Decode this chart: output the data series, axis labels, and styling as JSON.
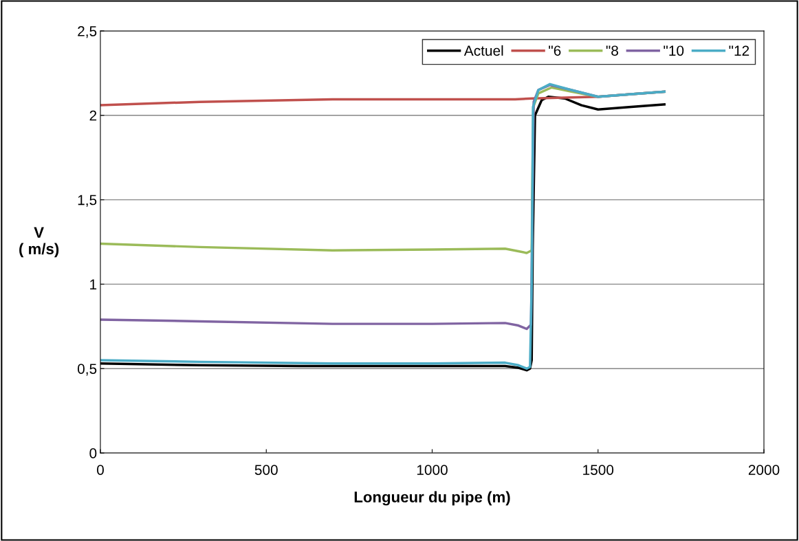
{
  "chart_data": {
    "type": "line",
    "xlabel": "Longueur du pipe (m)",
    "ylabel": "V\n( m/s)",
    "xlim": [
      0,
      2000
    ],
    "xticks": [
      0,
      500,
      1000,
      1500,
      2000
    ],
    "ylim": [
      0,
      2.5
    ],
    "yticks": [
      0,
      {
        "value": 0.5,
        "label": "0,5"
      },
      1,
      {
        "value": 1.5,
        "label": "1,5"
      },
      2,
      {
        "value": 2.5,
        "label": "2,5"
      }
    ],
    "grid": "y",
    "legend": "top right",
    "line_style": "solid",
    "marker": "none",
    "series": [
      {
        "name": "Actuel",
        "color": "#000000",
        "x": [
          0,
          300,
          600,
          900,
          1220,
          1260,
          1285,
          1295,
          1300,
          1303,
          1310,
          1330,
          1350,
          1400,
          1450,
          1500,
          1600,
          1700
        ],
        "values": [
          0.53,
          0.52,
          0.515,
          0.515,
          0.515,
          0.505,
          0.49,
          0.5,
          0.55,
          1.2,
          2.0,
          2.09,
          2.11,
          2.1,
          2.06,
          2.035,
          2.05,
          2.065
        ]
      },
      {
        "name": "\"6",
        "color": "#c0504d",
        "x": [
          0,
          300,
          700,
          1000,
          1250,
          1300,
          1400,
          1500,
          1600,
          1700
        ],
        "values": [
          2.06,
          2.08,
          2.095,
          2.095,
          2.095,
          2.1,
          2.105,
          2.11,
          2.125,
          2.14
        ]
      },
      {
        "name": "\"8",
        "color": "#9bbb59",
        "x": [
          0,
          300,
          700,
          1000,
          1220,
          1260,
          1285,
          1300,
          1302,
          1305,
          1320,
          1360,
          1420,
          1500,
          1600,
          1700
        ],
        "values": [
          1.24,
          1.22,
          1.2,
          1.205,
          1.21,
          1.195,
          1.185,
          1.2,
          1.6,
          2.05,
          2.13,
          2.165,
          2.14,
          2.11,
          2.125,
          2.14
        ]
      },
      {
        "name": "\"10",
        "color": "#8064a2",
        "x": [
          0,
          300,
          700,
          1000,
          1220,
          1260,
          1285,
          1298,
          1302,
          1306,
          1320,
          1355,
          1420,
          1500,
          1600,
          1700
        ],
        "values": [
          0.79,
          0.78,
          0.765,
          0.765,
          0.77,
          0.755,
          0.735,
          0.76,
          1.4,
          2.08,
          2.15,
          2.18,
          2.15,
          2.11,
          2.125,
          2.14
        ]
      },
      {
        "name": "\"12",
        "color": "#4bacc6",
        "x": [
          0,
          300,
          700,
          1000,
          1220,
          1260,
          1285,
          1295,
          1300,
          1304,
          1320,
          1355,
          1420,
          1500,
          1600,
          1700
        ],
        "values": [
          0.55,
          0.54,
          0.53,
          0.53,
          0.535,
          0.52,
          0.5,
          0.51,
          1.0,
          2.05,
          2.15,
          2.185,
          2.15,
          2.11,
          2.125,
          2.14
        ]
      }
    ]
  }
}
